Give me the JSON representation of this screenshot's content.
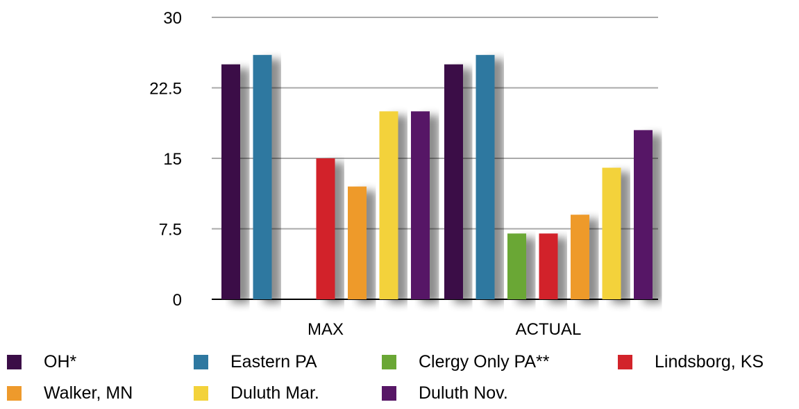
{
  "chart_data": {
    "type": "bar",
    "categories": [
      "MAX",
      "ACTUAL"
    ],
    "series": [
      {
        "name": "OH*",
        "values": [
          25,
          25
        ],
        "color": "#3b0d47"
      },
      {
        "name": "Eastern PA",
        "values": [
          26,
          26
        ],
        "color": "#2e78a0"
      },
      {
        "name": "Clergy Only PA**",
        "values": [
          null,
          7
        ],
        "color": "#6aa735"
      },
      {
        "name": "Lindsborg, KS",
        "values": [
          15,
          7
        ],
        "color": "#d2232a"
      },
      {
        "name": "Walker, MN",
        "values": [
          12,
          9
        ],
        "color": "#ee9a2c"
      },
      {
        "name": "Duluth Mar.",
        "values": [
          20,
          14
        ],
        "color": "#f3d23a"
      },
      {
        "name": "Duluth Nov.",
        "values": [
          20,
          18
        ],
        "color": "#571766"
      }
    ],
    "ylim": [
      0,
      30
    ],
    "yticks": [
      "0",
      "7.5",
      "15",
      "22.5",
      "30"
    ],
    "title": "",
    "xlabel": "",
    "ylabel": "",
    "grid": true,
    "legend_position": "bottom"
  }
}
